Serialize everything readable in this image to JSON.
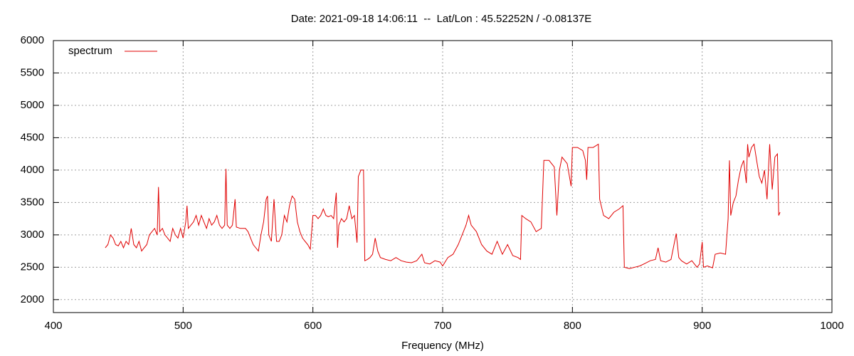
{
  "chart_data": {
    "type": "line",
    "title": "Date: 2021-09-18 14:06:11  --  Lat/Lon : 45.52252N / -0.08137E",
    "x_label": "Frequency (MHz)",
    "xlim": [
      400,
      1000
    ],
    "xticks": [
      400,
      500,
      600,
      700,
      800,
      900,
      1000
    ],
    "ylim": [
      1800,
      6000
    ],
    "yticks": [
      2000,
      2500,
      3000,
      3500,
      4000,
      4500,
      5000,
      5500,
      6000
    ],
    "grid": true,
    "legend": "top-left",
    "x": [
      440,
      442,
      444,
      446,
      448,
      450,
      452,
      454,
      456,
      458,
      460,
      462,
      464,
      466,
      468,
      470,
      472,
      474,
      476,
      478,
      480,
      481,
      482,
      484,
      486,
      488,
      490,
      492,
      494,
      496,
      498,
      500,
      502,
      503,
      504,
      506,
      508,
      510,
      512,
      514,
      516,
      518,
      520,
      522,
      524,
      526,
      528,
      530,
      532,
      533,
      534,
      536,
      538,
      540,
      541,
      544,
      548,
      550,
      552,
      554,
      556,
      558,
      560,
      562,
      564,
      565,
      566,
      568,
      570,
      572,
      574,
      576,
      578,
      580,
      582,
      584,
      586,
      588,
      590,
      592,
      594,
      596,
      598,
      600,
      602,
      604,
      606,
      608,
      610,
      612,
      614,
      616,
      618,
      619,
      620,
      622,
      624,
      626,
      628,
      630,
      632,
      634,
      635,
      637,
      639,
      640,
      642,
      644,
      646,
      648,
      650,
      652,
      656,
      660,
      664,
      668,
      672,
      676,
      680,
      684,
      686,
      690,
      694,
      698,
      700,
      704,
      708,
      712,
      716,
      718,
      720,
      722,
      724,
      726,
      728,
      730,
      734,
      738,
      742,
      746,
      750,
      754,
      758,
      760,
      761,
      764,
      768,
      772,
      776,
      778,
      782,
      786,
      788,
      790,
      792,
      796,
      799,
      800,
      804,
      808,
      810,
      811,
      812,
      816,
      820,
      821,
      824,
      828,
      832,
      836,
      839,
      840,
      844,
      848,
      852,
      856,
      860,
      864,
      866,
      868,
      872,
      876,
      880,
      882,
      884,
      888,
      892,
      896,
      898,
      900,
      901,
      904,
      908,
      910,
      914,
      918,
      920,
      921,
      922,
      924,
      926,
      928,
      930,
      932,
      934,
      935,
      936,
      938,
      940,
      942,
      944,
      946,
      948,
      950,
      952,
      954,
      956,
      958,
      959,
      960
    ],
    "series": [
      {
        "name": "spectrum",
        "color": "#e00000",
        "values": [
          2800,
          2850,
          3000,
          2950,
          2850,
          2830,
          2900,
          2800,
          2900,
          2850,
          3100,
          2850,
          2800,
          2900,
          2750,
          2800,
          2850,
          3000,
          3050,
          3100,
          3000,
          3740,
          3050,
          3100,
          3000,
          2950,
          2900,
          3100,
          3000,
          2950,
          3100,
          2950,
          3200,
          3450,
          3100,
          3150,
          3200,
          3300,
          3150,
          3300,
          3200,
          3100,
          3250,
          3150,
          3200,
          3300,
          3150,
          3100,
          3150,
          4020,
          3150,
          3100,
          3150,
          3550,
          3120,
          3100,
          3100,
          3050,
          2950,
          2850,
          2800,
          2750,
          3000,
          3200,
          3550,
          3600,
          3000,
          2900,
          3550,
          2900,
          2900,
          3000,
          3300,
          3200,
          3450,
          3600,
          3550,
          3200,
          3050,
          2950,
          2900,
          2850,
          2780,
          3300,
          3300,
          3250,
          3300,
          3400,
          3300,
          3280,
          3300,
          3250,
          3650,
          2800,
          3150,
          3250,
          3200,
          3250,
          3450,
          3250,
          3300,
          2880,
          3900,
          4000,
          4000,
          2600,
          2620,
          2650,
          2700,
          2950,
          2750,
          2650,
          2620,
          2600,
          2650,
          2600,
          2580,
          2570,
          2600,
          2700,
          2570,
          2550,
          2600,
          2580,
          2520,
          2650,
          2700,
          2850,
          3050,
          3150,
          3300,
          3150,
          3100,
          3050,
          2950,
          2850,
          2750,
          2700,
          2900,
          2700,
          2850,
          2680,
          2650,
          2620,
          3300,
          3250,
          3200,
          3050,
          3100,
          4150,
          4150,
          4050,
          3300,
          4000,
          4200,
          4100,
          3750,
          4350,
          4350,
          4300,
          4150,
          3850,
          4350,
          4350,
          4400,
          3550,
          3300,
          3250,
          3350,
          3400,
          3450,
          2500,
          2480,
          2500,
          2520,
          2560,
          2600,
          2620,
          2800,
          2600,
          2580,
          2620,
          3020,
          2650,
          2600,
          2550,
          2600,
          2500,
          2550,
          2890,
          2500,
          2520,
          2490,
          2700,
          2720,
          2700,
          3250,
          4150,
          3300,
          3500,
          3600,
          3850,
          4050,
          4150,
          3800,
          4400,
          4200,
          4350,
          4400,
          4150,
          3900,
          3800,
          4000,
          3550,
          4400,
          3700,
          4200,
          4250,
          3300,
          3350
        ]
      }
    ]
  }
}
